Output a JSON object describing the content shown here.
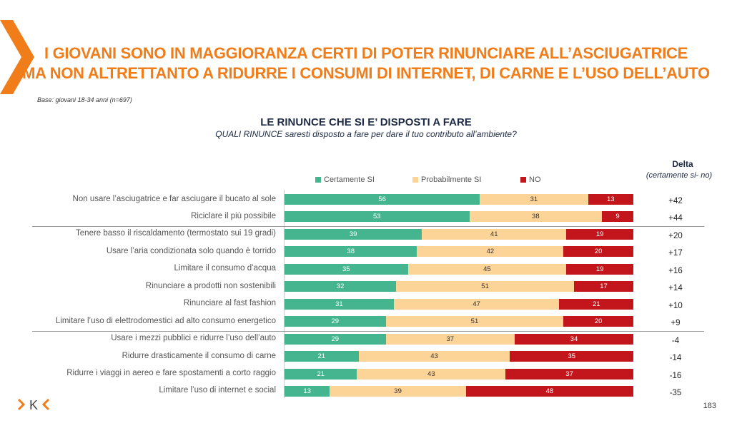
{
  "title_line1": "I GIOVANI SONO IN MAGGIORANZA CERTI DI POTER RINUNCIARE ALL’ASCIUGATRICE",
  "title_line2": "MA NON ALTRETTANTO A RIDURRE I CONSUMI DI INTERNET, DI CARNE E L’USO DELL’AUTO",
  "base": "Base: giovani 18-34 anni (n=697)",
  "page_number": "183",
  "logo_text": "K",
  "colors": {
    "certamente": "#45b58f",
    "probabilmente": "#fdd498",
    "no": "#c3161c",
    "accent": "#f07d1a"
  },
  "chart_data": {
    "type": "bar",
    "stacked": true,
    "orientation": "horizontal",
    "title": "LE RINUNCE CHE SI E’ DISPOSTI A FARE",
    "subtitle": "QUALI RINUNCE saresti disposto a fare per dare il tuo contributo all’ambiente?",
    "legend": [
      "Certamente SI",
      "Probabilmente SI",
      "NO"
    ],
    "delta_header": "Delta",
    "delta_sub": "(certamente si- no)",
    "categories": [
      "Non usare l’asciugatrice e far asciugare il bucato al sole",
      "Riciclare il più possibile",
      "Tenere basso il riscaldamento (termostato sui 19 gradi)",
      "Usare l’aria condizionata solo quando è torrido",
      "Limitare il consumo d’acqua",
      "Rinunciare a prodotti non sostenibili",
      "Rinunciare al fast fashion",
      "Limitare l’uso di elettrodomestici ad alto consumo energetico",
      "Usare i mezzi pubblici e ridurre l’uso dell’auto",
      "Ridurre drasticamente il consumo di carne",
      "Ridurre i viaggi in aereo e fare spostamenti a corto raggio",
      "Limitare l’uso di internet e social"
    ],
    "series": [
      {
        "name": "Certamente SI",
        "values": [
          56,
          53,
          39,
          38,
          35,
          32,
          31,
          29,
          29,
          21,
          21,
          13
        ]
      },
      {
        "name": "Probabilmente SI",
        "values": [
          31,
          38,
          41,
          42,
          45,
          51,
          47,
          51,
          37,
          43,
          43,
          39
        ]
      },
      {
        "name": "NO",
        "values": [
          13,
          9,
          19,
          20,
          19,
          17,
          21,
          20,
          34,
          35,
          37,
          48
        ]
      }
    ],
    "delta": [
      "+42",
      "+44",
      "+20",
      "+17",
      "+16",
      "+14",
      "+10",
      "+9",
      "-4",
      "-14",
      "-16",
      "-35"
    ],
    "group_breaks_after": [
      1,
      7
    ]
  }
}
